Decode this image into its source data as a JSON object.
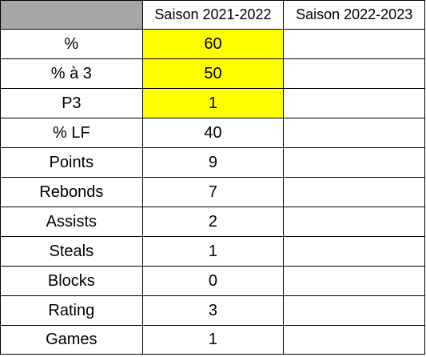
{
  "table": {
    "colors": {
      "header_corner": "#a6a6a6",
      "highlight": "#ffff00",
      "grid": "#000000"
    },
    "header": {
      "corner": "",
      "season1": "Saison 2021-2022",
      "season2": "Saison 2022-2023"
    },
    "rows": [
      {
        "label": "%",
        "season1": "60",
        "season2": "",
        "highlight": true
      },
      {
        "label": "% à 3",
        "season1": "50",
        "season2": "",
        "highlight": true
      },
      {
        "label": "P3",
        "season1": "1",
        "season2": "",
        "highlight": true
      },
      {
        "label": "% LF",
        "season1": "40",
        "season2": "",
        "highlight": false
      },
      {
        "label": "Points",
        "season1": "9",
        "season2": "",
        "highlight": false
      },
      {
        "label": "Rebonds",
        "season1": "7",
        "season2": "",
        "highlight": false
      },
      {
        "label": "Assists",
        "season1": "2",
        "season2": "",
        "highlight": false
      },
      {
        "label": "Steals",
        "season1": "1",
        "season2": "",
        "highlight": false
      },
      {
        "label": "Blocks",
        "season1": "0",
        "season2": "",
        "highlight": false
      },
      {
        "label": "Rating",
        "season1": "3",
        "season2": "",
        "highlight": false
      },
      {
        "label": "Games",
        "season1": "1",
        "season2": "",
        "highlight": false
      }
    ]
  }
}
